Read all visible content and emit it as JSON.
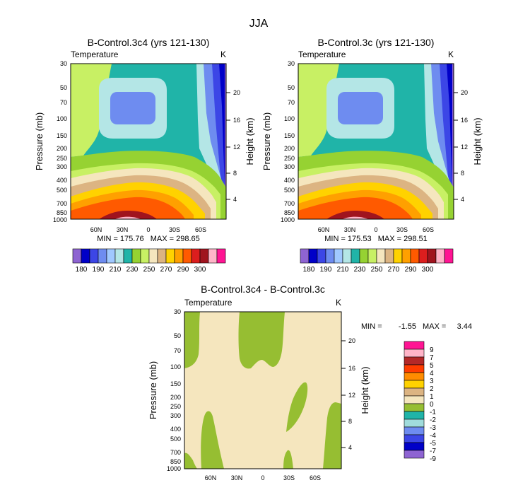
{
  "figure_title": "JJA",
  "chart_data": [
    {
      "type": "heatmap",
      "title": "B-Control.3c4 (yrs 121-130)",
      "subtitle_left": "Temperature",
      "subtitle_right": "K",
      "ylabel": "Pressure (mb)",
      "y2label": "Height (km)",
      "pressure_ticks": [
        "30",
        "50",
        "70",
        "100",
        "150",
        "200",
        "250",
        "300",
        "400",
        "500",
        "700",
        "850",
        "1000"
      ],
      "height_ticks": [
        "20",
        "16",
        "12",
        "8",
        "4"
      ],
      "lat_ticks": [
        "60N",
        "30N",
        "0",
        "30S",
        "60S"
      ],
      "stats": "MIN = 175.76   MAX = 298.65",
      "colorbar_labels": [
        "180",
        "190",
        "210",
        "230",
        "250",
        "270",
        "290",
        "300"
      ]
    },
    {
      "type": "heatmap",
      "title": "B-Control.3c (yrs 121-130)",
      "subtitle_left": "Temperature",
      "subtitle_right": "K",
      "ylabel": "Pressure (mb)",
      "y2label": "Height (km)",
      "pressure_ticks": [
        "30",
        "50",
        "70",
        "100",
        "150",
        "200",
        "250",
        "300",
        "400",
        "500",
        "700",
        "850",
        "1000"
      ],
      "height_ticks": [
        "20",
        "16",
        "12",
        "8",
        "4"
      ],
      "lat_ticks": [
        "60N",
        "30N",
        "0",
        "30S",
        "60S"
      ],
      "stats": "MIN = 175.53   MAX = 298.51",
      "colorbar_labels": [
        "180",
        "190",
        "210",
        "230",
        "250",
        "270",
        "290",
        "300"
      ]
    },
    {
      "type": "heatmap",
      "title": "B-Control.3c4 - B-Control.3c",
      "subtitle_left": "Temperature",
      "subtitle_right": "K",
      "ylabel": "Pressure (mb)",
      "y2label": "Height (km)",
      "pressure_ticks": [
        "30",
        "50",
        "70",
        "100",
        "150",
        "200",
        "250",
        "300",
        "400",
        "500",
        "700",
        "850",
        "1000"
      ],
      "height_ticks": [
        "20",
        "16",
        "12",
        "8",
        "4"
      ],
      "lat_ticks": [
        "60N",
        "30N",
        "0",
        "30S",
        "60S"
      ],
      "stats_min_label": "MIN =",
      "stats_min": "-1.55",
      "stats_max_label": "MAX =",
      "stats_max": "3.44",
      "colorbar_labels": [
        "9",
        "7",
        "5",
        "4",
        "3",
        "2",
        "1",
        "0",
        "-1",
        "-2",
        "-3",
        "-4",
        "-5",
        "-7",
        "-9"
      ]
    }
  ],
  "temp_colors": [
    "#8e64d2",
    "#0000c8",
    "#3c46e6",
    "#6e8cf0",
    "#a0c8ff",
    "#b4e6e6",
    "#20b4a8",
    "#96d232",
    "#c8f064",
    "#f5e6be",
    "#dcb482",
    "#ffd200",
    "#ffa000",
    "#ff5a00",
    "#dc1e1e",
    "#a0141e",
    "#ffb4c8",
    "#ff1493"
  ],
  "diff_colors": [
    "#ff1493",
    "#ffb4c8",
    "#b42828",
    "#ff3c00",
    "#ff8c00",
    "#ffd200",
    "#dcb482",
    "#f5e6be",
    "#96be32",
    "#20b4a8",
    "#a0dcdc",
    "#6e8cf0",
    "#3c46e6",
    "#0000c8",
    "#8e64d2"
  ]
}
